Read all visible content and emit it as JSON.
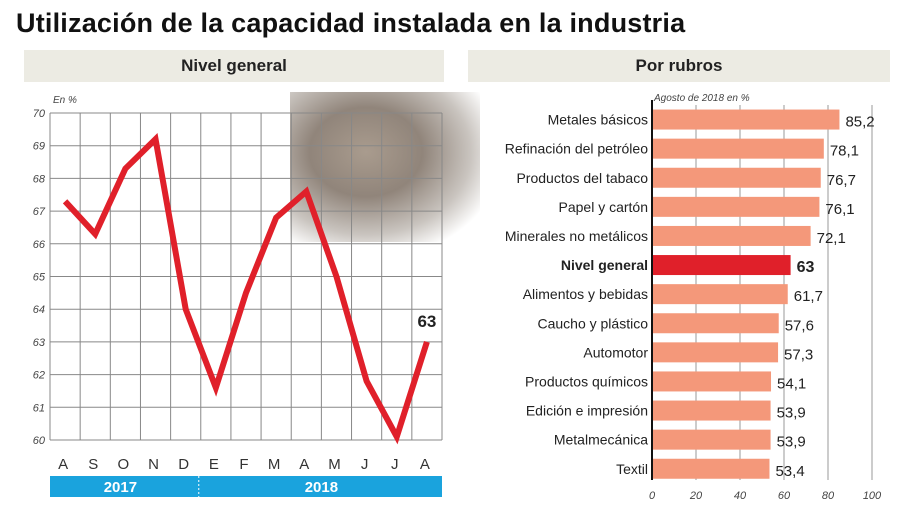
{
  "title": "Utilización de la capacidad instalada en la industria",
  "chart_data": [
    {
      "type": "line",
      "panel_title": "Nivel general",
      "unit_label": "En %",
      "categories": [
        "A",
        "S",
        "O",
        "N",
        "D",
        "E",
        "F",
        "M",
        "A",
        "M",
        "J",
        "J",
        "A"
      ],
      "years": [
        "2017",
        "2018"
      ],
      "values": [
        67.3,
        66.3,
        68.3,
        69.2,
        64.0,
        61.6,
        64.5,
        66.8,
        67.6,
        65.0,
        61.8,
        60.1,
        63
      ],
      "last_label": "63",
      "ylim": [
        60,
        70
      ],
      "yticks": [
        "60",
        "61",
        "62",
        "63",
        "64",
        "65",
        "66",
        "67",
        "68",
        "69",
        "70"
      ],
      "grid": true,
      "color": "#e0202a"
    },
    {
      "type": "bar",
      "orientation": "horizontal",
      "panel_title": "Por rubros",
      "subtitle": "Agosto de 2018 en %",
      "categories": [
        "Metales básicos",
        "Refinación del petróleo",
        "Productos del tabaco",
        "Papel y cartón",
        "Minerales no metálicos",
        "Nivel general",
        "Alimentos y bebidas",
        "Caucho y plástico",
        "Automotor",
        "Productos químicos",
        "Edición e impresión",
        "Metalmecánica",
        "Textil"
      ],
      "values": [
        85.2,
        78.1,
        76.7,
        76.1,
        72.1,
        63,
        61.7,
        57.6,
        57.3,
        54.1,
        53.9,
        53.9,
        53.4
      ],
      "value_labels": [
        "85,2",
        "78,1",
        "76,7",
        "76,1",
        "72,1",
        "63",
        "61,7",
        "57,6",
        "57,3",
        "54,1",
        "53,9",
        "53,9",
        "53,4"
      ],
      "highlight": "Nivel general",
      "xlim": [
        0,
        100
      ],
      "xticks": [
        "0",
        "20",
        "40",
        "60",
        "80",
        "100"
      ],
      "bar_color": "#f4987a",
      "highlight_color": "#e0202a"
    }
  ]
}
